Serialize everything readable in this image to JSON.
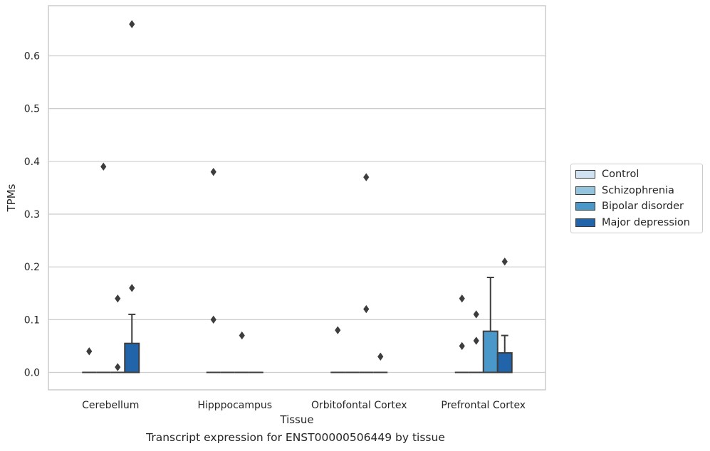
{
  "caption": "Transcript expression for ENST00000506449 by tissue",
  "colors": {
    "Control": "#d0e1f2",
    "Schizophrenia": "#93c4de",
    "Bipolar disorder": "#4a98c9",
    "Major depression": "#2264a9",
    "grid": "#cccccc",
    "frame": "#cccccc",
    "line": "#3d3d3d"
  },
  "chart_data": {
    "type": "box",
    "title": "",
    "xlabel": "Tissue",
    "ylabel": "TPMs",
    "ylim": [
      -0.033,
      0.695
    ],
    "yticks": [
      0.0,
      0.1,
      0.2,
      0.3,
      0.4,
      0.5,
      0.6
    ],
    "ytick_labels": [
      "0.0",
      "0.1",
      "0.2",
      "0.3",
      "0.4",
      "0.5",
      "0.6"
    ],
    "grid": true,
    "legend_position": "right",
    "categories": [
      "Cerebellum",
      "Hipppocampus",
      "Orbitofontal Cortex",
      "Prefrontal Cortex"
    ],
    "series": [
      {
        "name": "Control",
        "boxes": [
          {
            "q1": 0,
            "median": 0,
            "q3": 0,
            "whisker_low": 0,
            "whisker_high": 0,
            "outliers": [
              0.04
            ]
          },
          {
            "q1": 0,
            "median": 0,
            "q3": 0,
            "whisker_low": 0,
            "whisker_high": 0,
            "outliers": [
              0.38,
              0.1
            ]
          },
          {
            "q1": 0,
            "median": 0,
            "q3": 0,
            "whisker_low": 0,
            "whisker_high": 0,
            "outliers": [
              0.08
            ]
          },
          {
            "q1": 0,
            "median": 0,
            "q3": 0,
            "whisker_low": 0,
            "whisker_high": 0,
            "outliers": [
              0.14,
              0.05
            ]
          }
        ]
      },
      {
        "name": "Schizophrenia",
        "boxes": [
          {
            "q1": 0,
            "median": 0,
            "q3": 0,
            "whisker_low": 0,
            "whisker_high": 0,
            "outliers": [
              0.39
            ]
          },
          {
            "q1": 0,
            "median": 0,
            "q3": 0,
            "whisker_low": 0,
            "whisker_high": 0,
            "outliers": []
          },
          {
            "q1": 0,
            "median": 0,
            "q3": 0,
            "whisker_low": 0,
            "whisker_high": 0,
            "outliers": []
          },
          {
            "q1": 0,
            "median": 0,
            "q3": 0,
            "whisker_low": 0,
            "whisker_high": 0,
            "outliers": [
              0.11,
              0.06
            ]
          }
        ]
      },
      {
        "name": "Bipolar disorder",
        "boxes": [
          {
            "q1": 0,
            "median": 0,
            "q3": 0,
            "whisker_low": 0,
            "whisker_high": 0,
            "outliers": [
              0.14,
              0.01
            ]
          },
          {
            "q1": 0,
            "median": 0,
            "q3": 0,
            "whisker_low": 0,
            "whisker_high": 0,
            "outliers": [
              0.07
            ]
          },
          {
            "q1": 0,
            "median": 0,
            "q3": 0,
            "whisker_low": 0,
            "whisker_high": 0,
            "outliers": [
              0.37,
              0.12
            ]
          },
          {
            "q1": 0,
            "median": 0,
            "q3": 0.078,
            "whisker_low": 0,
            "whisker_high": 0.18,
            "outliers": []
          }
        ]
      },
      {
        "name": "Major depression",
        "boxes": [
          {
            "q1": 0,
            "median": 0,
            "q3": 0.055,
            "whisker_low": 0,
            "whisker_high": 0.11,
            "outliers": [
              0.66,
              0.16
            ]
          },
          {
            "q1": 0,
            "median": 0,
            "q3": 0,
            "whisker_low": 0,
            "whisker_high": 0,
            "outliers": []
          },
          {
            "q1": 0,
            "median": 0,
            "q3": 0,
            "whisker_low": 0,
            "whisker_high": 0,
            "outliers": [
              0.03
            ]
          },
          {
            "q1": 0,
            "median": 0,
            "q3": 0.037,
            "whisker_low": 0,
            "whisker_high": 0.07,
            "outliers": [
              0.21
            ]
          }
        ]
      }
    ]
  }
}
